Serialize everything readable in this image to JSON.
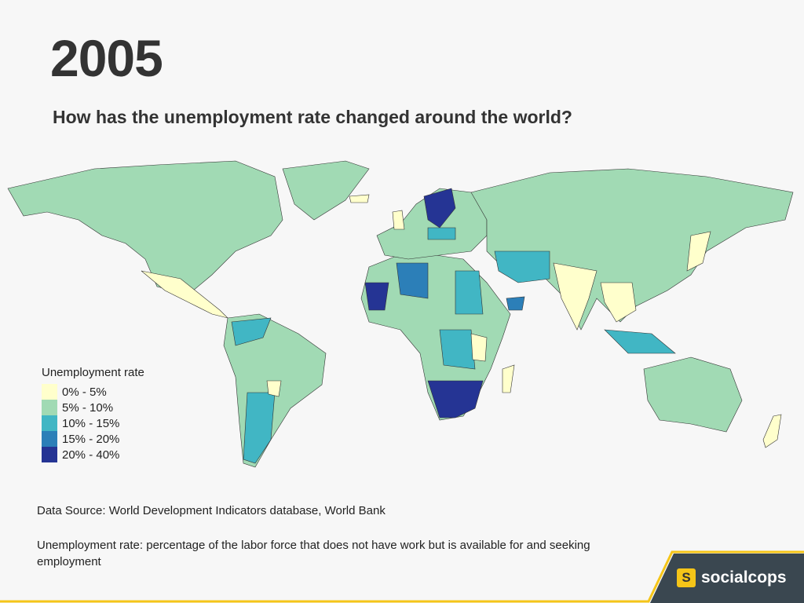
{
  "header": {
    "title": "2005",
    "subtitle": "How has the unemployment rate changed around the world?"
  },
  "legend": {
    "title": "Unemployment rate",
    "items": [
      {
        "label": "0% - 5%",
        "color": "#ffffcc"
      },
      {
        "label": "5% - 10%",
        "color": "#a1dab4"
      },
      {
        "label": "10% - 15%",
        "color": "#41b6c4"
      },
      {
        "label": "15% - 20%",
        "color": "#2c7fb8"
      },
      {
        "label": "20% - 40%",
        "color": "#253494"
      }
    ]
  },
  "footer": {
    "source": "Data Source: World Development Indicators database, World Bank",
    "definition": "Unemployment rate: percentage of the labor force that does not have work but is available for and seeking employment"
  },
  "logo": {
    "icon": "S",
    "text": "socialcops"
  }
}
